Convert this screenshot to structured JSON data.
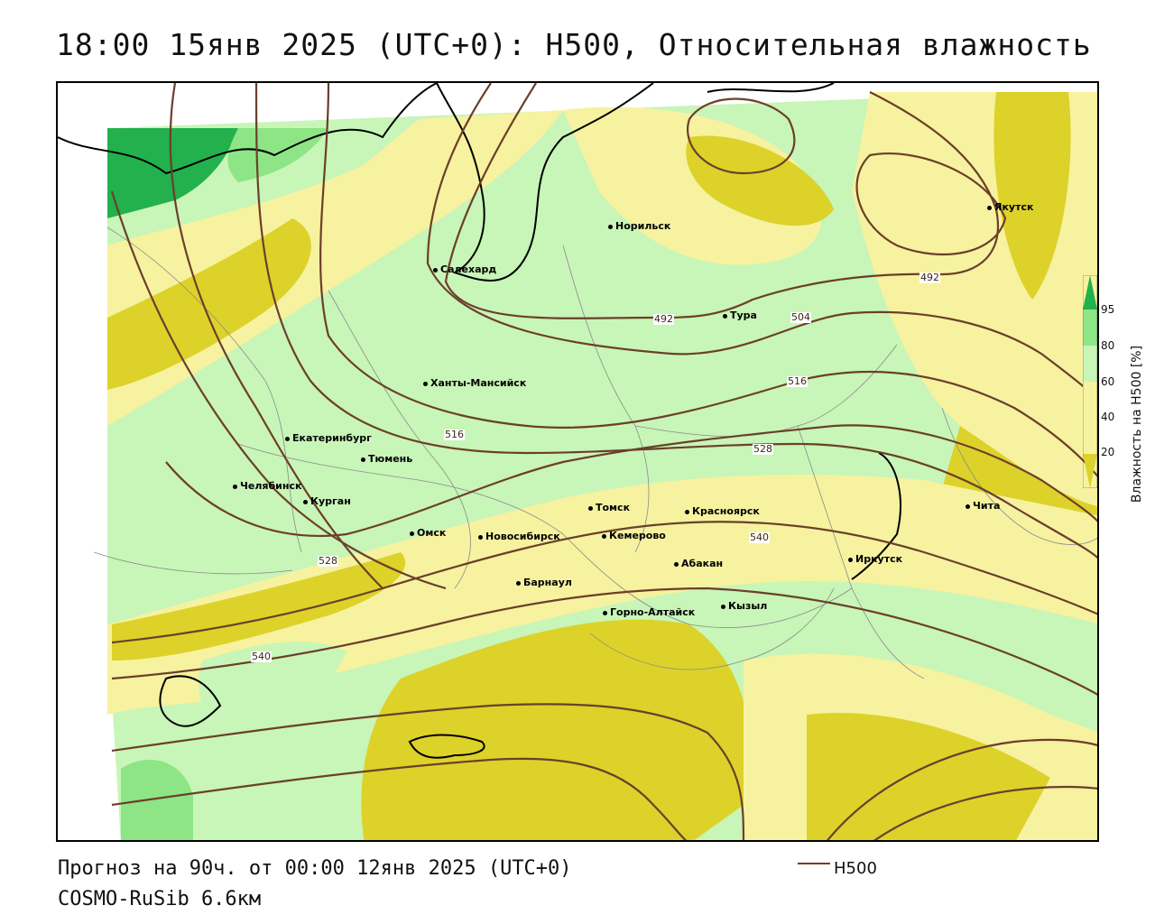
{
  "title": "18:00 15янв 2025 (UTC+0): H500, Относительная влажность",
  "footer": {
    "forecast": "Прогноз на 90ч. от 00:00 12янв 2025 (UTC+0)",
    "model": "COSMO-RuSib 6.6км"
  },
  "legend": {
    "line_label": "H500",
    "line_color": "#6b3f2a"
  },
  "colorbar": {
    "title": "Влажность на H500 [%]",
    "ticks": [
      "95",
      "80",
      "60",
      "40",
      "20"
    ],
    "colors": {
      "very_dry": "#dcd22a",
      "dry": "#f6f2a0",
      "moist": "#c8f5b8",
      "humid": "#8de586",
      "saturated": "#22b14c"
    }
  },
  "contour_labels": {
    "c492a": "492",
    "c492b": "492",
    "c504": "504",
    "c516a": "516",
    "c516b": "516",
    "c528a": "528",
    "c528b": "528",
    "c540a": "540",
    "c540b": "540"
  },
  "cities": {
    "norilsk": "Норильск",
    "yakutsk": "Якутск",
    "salekhard": "Салехард",
    "tura": "Тура",
    "khanty": "Ханты-Мансийск",
    "ekb": "Екатеринбург",
    "tyumen": "Тюмень",
    "chelyabinsk": "Челябинск",
    "kurgan": "Курган",
    "omsk": "Омск",
    "novosibirsk": "Новосибирск",
    "tomsk": "Томск",
    "kemerovo": "Кемерово",
    "krasnoyarsk": "Красноярск",
    "abakan": "Абакан",
    "barnaul": "Барнаул",
    "gorno": "Горно-Алтайск",
    "kyzyl": "Кызыл",
    "irkutsk": "Иркутск",
    "chita": "Чита"
  }
}
